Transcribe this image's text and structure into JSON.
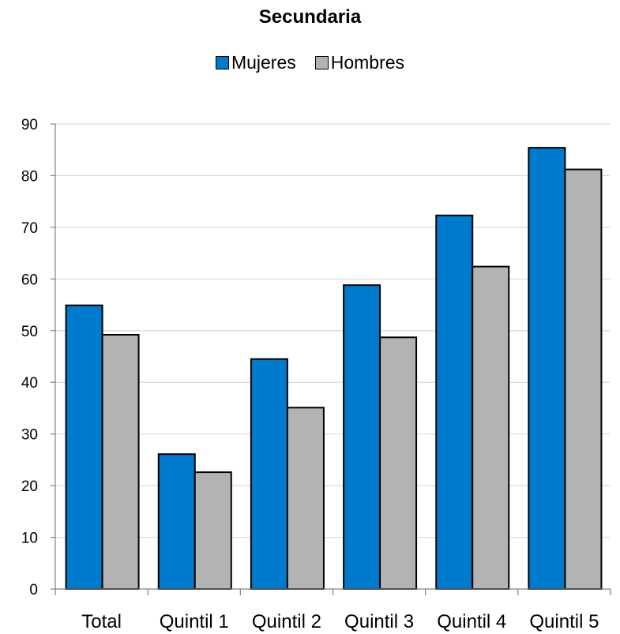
{
  "chart_data": {
    "type": "bar",
    "title": "Secundaria",
    "xlabel": "",
    "ylabel": "",
    "categories": [
      "Total",
      "Quintil 1",
      "Quintil 2",
      "Quintil 3",
      "Quintil 4",
      "Quintil 5"
    ],
    "series": [
      {
        "name": "Mujeres",
        "color": "#007acc",
        "values": [
          54.9,
          26.1,
          44.5,
          58.8,
          72.3,
          85.4
        ]
      },
      {
        "name": "Hombres",
        "color": "#b3b3b3",
        "values": [
          49.2,
          22.6,
          35.1,
          48.7,
          62.4,
          81.2
        ]
      }
    ],
    "ylim": [
      0,
      90
    ],
    "yticks": [
      "0",
      "10",
      "20",
      "30",
      "40",
      "50",
      "60",
      "70",
      "80",
      "90"
    ],
    "grid": true,
    "legend_position": "top"
  }
}
